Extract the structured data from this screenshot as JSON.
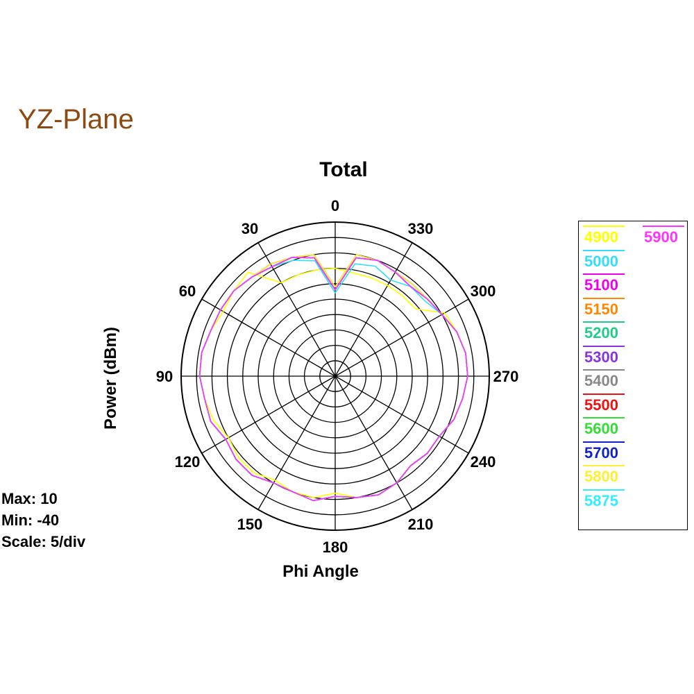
{
  "heading": "YZ-Plane",
  "stats": {
    "max": "Max: 10",
    "min": "Min: -40",
    "scale": "Scale: 5/div"
  },
  "chart_data": {
    "type": "polar-line",
    "title": "Total",
    "xlabel": "Phi Angle",
    "ylabel": "Power  (dBm)",
    "r_range": [
      -40,
      10
    ],
    "r_step": 5,
    "angle_ticks": [
      0,
      30,
      60,
      90,
      120,
      150,
      180,
      210,
      240,
      270,
      300,
      330
    ],
    "angle_direction": "counterclockwise, 0 at top",
    "grid": true,
    "legend_position": "right",
    "angles_deg": [
      0,
      10,
      20,
      30,
      40,
      50,
      60,
      70,
      80,
      90,
      100,
      110,
      120,
      130,
      140,
      150,
      160,
      170,
      180,
      190,
      200,
      210,
      220,
      230,
      240,
      250,
      260,
      270,
      280,
      290,
      300,
      310,
      320,
      330,
      340,
      350
    ],
    "series": [
      {
        "name": "4900",
        "color": "#ffff00",
        "values": [
          -5,
          -5,
          -5,
          -5,
          4,
          3,
          2,
          3,
          4,
          4,
          3,
          2,
          0,
          1,
          1,
          -1,
          0,
          0,
          -2,
          0,
          1,
          0,
          -2,
          -1,
          -1,
          1,
          2,
          3,
          3,
          2,
          1,
          -6,
          -6,
          -6,
          -6,
          -6
        ]
      },
      {
        "name": "5000",
        "color": "#33ddff",
        "values": [
          -13,
          -2,
          0,
          1,
          2,
          3,
          3,
          3,
          4,
          4,
          3,
          3,
          1,
          2,
          2,
          0,
          0,
          1,
          -1,
          0,
          1,
          0,
          -2,
          -1,
          -1,
          1,
          2,
          3,
          3,
          2,
          0,
          -2,
          -2,
          -4,
          -2,
          -3
        ]
      },
      {
        "name": "5100",
        "color": "#ee00ee",
        "values": [
          -12,
          -1,
          1,
          1,
          2,
          3,
          3,
          3,
          4,
          4,
          3,
          3,
          1,
          2,
          2,
          0,
          0,
          1,
          -1,
          0,
          1,
          0,
          -2,
          -1,
          -1,
          1,
          2,
          3,
          3,
          2,
          0,
          -1,
          -2,
          -1,
          0,
          -1
        ]
      },
      {
        "name": "5150",
        "color": "#ff8800",
        "values": [
          -12,
          -1,
          1,
          1,
          2,
          3,
          3,
          3,
          4,
          4,
          3,
          3,
          1,
          2,
          2,
          0,
          0,
          1,
          -1,
          0,
          1,
          0,
          -2,
          -1,
          -1,
          1,
          2,
          3,
          3,
          2,
          0,
          -1,
          -2,
          -1,
          0,
          -1
        ]
      },
      {
        "name": "5200",
        "color": "#22cc88",
        "values": [
          -11,
          0,
          1,
          2,
          2,
          3,
          3,
          3,
          4,
          4,
          3,
          3,
          1,
          2,
          2,
          0,
          0,
          1,
          -1,
          0,
          1,
          0,
          -2,
          -1,
          -1,
          1,
          2,
          3,
          3,
          2,
          0,
          -1,
          -1,
          -1,
          0,
          0
        ]
      },
      {
        "name": "5300",
        "color": "#8833dd",
        "values": [
          -12,
          -1,
          1,
          1,
          2,
          3,
          3,
          3,
          4,
          4,
          3,
          3,
          1,
          2,
          2,
          0,
          0,
          1,
          -1,
          0,
          1,
          0,
          -2,
          -1,
          -1,
          1,
          2,
          3,
          3,
          2,
          0,
          -1,
          -2,
          -1,
          0,
          -1
        ]
      },
      {
        "name": "5400",
        "color": "#888888",
        "values": [
          -12,
          -1,
          1,
          1,
          2,
          3,
          3,
          3,
          4,
          4,
          3,
          3,
          1,
          2,
          2,
          0,
          0,
          1,
          -1,
          0,
          1,
          0,
          -2,
          -1,
          -1,
          1,
          2,
          3,
          3,
          2,
          0,
          -1,
          -2,
          -1,
          0,
          -1
        ]
      },
      {
        "name": "5500",
        "color": "#ee1111",
        "values": [
          -11,
          0,
          1,
          2,
          2,
          3,
          3,
          3,
          4,
          4,
          3,
          3,
          1,
          2,
          2,
          0,
          0,
          1,
          -1,
          0,
          1,
          0,
          -2,
          -1,
          -1,
          1,
          2,
          3,
          3,
          2,
          0,
          -1,
          -1,
          -1,
          0,
          0
        ]
      },
      {
        "name": "5600",
        "color": "#33dd33",
        "values": [
          -12,
          -1,
          1,
          1,
          2,
          3,
          3,
          3,
          4,
          4,
          3,
          3,
          1,
          2,
          2,
          0,
          0,
          1,
          -1,
          0,
          1,
          0,
          -2,
          -1,
          -1,
          1,
          2,
          3,
          3,
          2,
          0,
          -1,
          -2,
          -1,
          0,
          -1
        ]
      },
      {
        "name": "5700",
        "color": "#1122cc",
        "values": [
          -12,
          -1,
          1,
          1,
          2,
          3,
          3,
          3,
          4,
          4,
          3,
          3,
          1,
          2,
          2,
          0,
          0,
          1,
          -1,
          0,
          1,
          0,
          -2,
          -1,
          -1,
          1,
          2,
          3,
          3,
          2,
          0,
          -1,
          -2,
          -1,
          0,
          -1
        ]
      },
      {
        "name": "5800",
        "color": "#ffee33",
        "values": [
          -11,
          0,
          1,
          2,
          2,
          3,
          3,
          3,
          4,
          4,
          3,
          3,
          1,
          2,
          2,
          0,
          0,
          1,
          -1,
          0,
          1,
          0,
          -2,
          -1,
          -1,
          1,
          2,
          3,
          3,
          2,
          0,
          -1,
          -1,
          -1,
          0,
          0
        ]
      },
      {
        "name": "5875",
        "color": "#33eeff",
        "values": [
          -12,
          -1,
          1,
          1,
          2,
          3,
          3,
          3,
          4,
          4,
          3,
          3,
          1,
          2,
          2,
          0,
          0,
          1,
          -1,
          0,
          1,
          0,
          -2,
          -1,
          -1,
          1,
          2,
          3,
          3,
          2,
          0,
          -1,
          -2,
          -1,
          0,
          -1
        ]
      },
      {
        "name": "5900",
        "color": "#ff33ff",
        "values": [
          -12,
          -1,
          1,
          1,
          2,
          3,
          3,
          3,
          4,
          4,
          3,
          3,
          1,
          2,
          2,
          0,
          0,
          1,
          -1,
          0,
          1,
          0,
          -2,
          -1,
          -1,
          1,
          2,
          3,
          3,
          2,
          0,
          -1,
          -2,
          -1,
          0,
          -1
        ]
      }
    ]
  }
}
